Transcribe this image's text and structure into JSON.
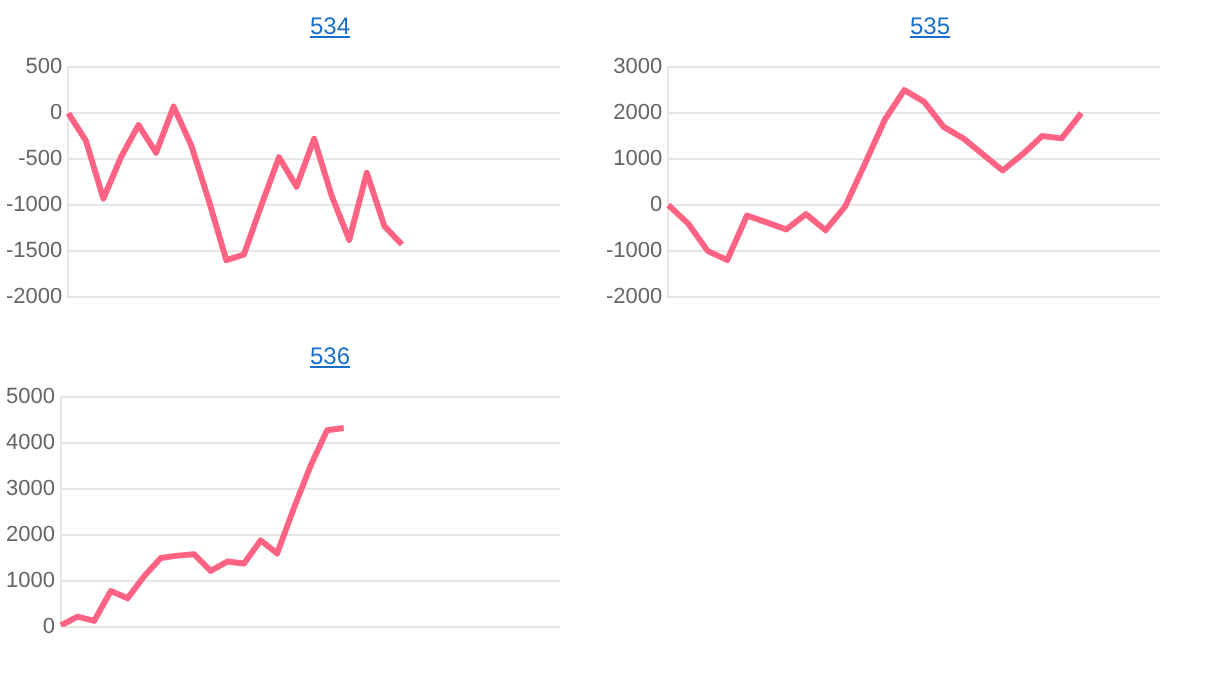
{
  "chart_data": [
    {
      "type": "line",
      "title": "534",
      "categories": [
        null,
        null,
        null,
        null,
        null,
        null,
        null,
        null,
        null,
        null,
        null,
        null,
        null,
        null,
        null,
        null,
        null,
        null,
        null,
        null,
        null,
        null,
        null,
        null,
        null,
        null,
        null,
        null,
        null
      ],
      "series": [
        {
          "color": "#ff6384",
          "values": [
            0,
            -300,
            -930,
            -480,
            -130,
            -430,
            70,
            -350,
            -950,
            -1600,
            -1540,
            -1000,
            -480,
            -800,
            -280,
            -900,
            -1380,
            -650,
            -1230,
            -1430,
            null,
            null,
            null,
            null,
            null,
            null,
            null,
            null,
            null
          ]
        }
      ],
      "ylim": [
        -2000,
        500
      ],
      "yticks": [
        -2000,
        -1500,
        -1000,
        -500,
        0,
        500
      ],
      "grid": "y",
      "legend": false,
      "marker": "none",
      "tick_labels": "y"
    },
    {
      "type": "line",
      "title": "535",
      "categories": [
        null,
        null,
        null,
        null,
        null,
        null,
        null,
        null,
        null,
        null,
        null,
        null,
        null,
        null,
        null,
        null,
        null,
        null,
        null,
        null,
        null,
        null,
        null,
        null,
        null,
        null
      ],
      "series": [
        {
          "color": "#ff6384",
          "values": [
            0,
            -400,
            -1000,
            -1200,
            -230,
            -380,
            -530,
            -200,
            -550,
            -30,
            900,
            1850,
            2500,
            2250,
            1700,
            1450,
            1100,
            750,
            1100,
            1500,
            1450,
            2000,
            null,
            null,
            null,
            null
          ]
        }
      ],
      "ylim": [
        -2000,
        3000
      ],
      "yticks": [
        -2000,
        -1000,
        0,
        1000,
        2000,
        3000
      ],
      "grid": "y",
      "legend": false,
      "marker": "none",
      "tick_labels": "y"
    },
    {
      "type": "line",
      "title": "536",
      "categories": [
        null,
        null,
        null,
        null,
        null,
        null,
        null,
        null,
        null,
        null,
        null,
        null,
        null,
        null,
        null,
        null,
        null,
        null,
        null,
        null,
        null,
        null,
        null,
        null,
        null,
        null,
        null,
        null,
        null,
        null,
        null
      ],
      "series": [
        {
          "color": "#ff6384",
          "values": [
            30,
            220,
            130,
            780,
            620,
            1100,
            1500,
            1550,
            1580,
            1220,
            1420,
            1380,
            1880,
            1600,
            2580,
            3500,
            4280,
            4330,
            null,
            null,
            null,
            null,
            null,
            null,
            null,
            null,
            null,
            null,
            null,
            null,
            null
          ]
        }
      ],
      "ylim": [
        0,
        5000
      ],
      "yticks": [
        0,
        1000,
        2000,
        3000,
        4000,
        5000
      ],
      "grid": "y",
      "legend": false,
      "marker": "none",
      "tick_labels": "y"
    }
  ]
}
